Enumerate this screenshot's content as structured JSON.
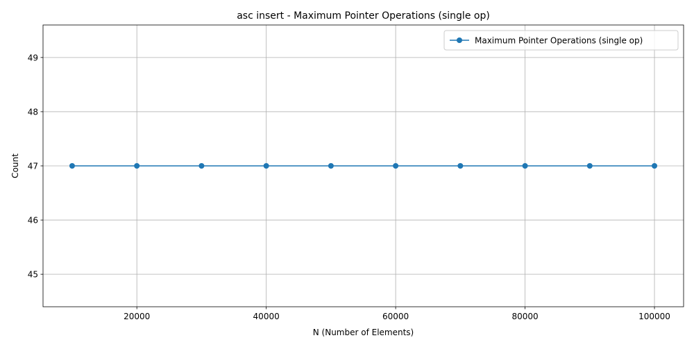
{
  "chart_data": {
    "type": "line",
    "title": "asc insert - Maximum Pointer Operations (single op)",
    "xlabel": "N (Number of Elements)",
    "ylabel": "Count",
    "x": [
      10000,
      20000,
      30000,
      40000,
      50000,
      60000,
      70000,
      80000,
      90000,
      100000
    ],
    "series": [
      {
        "name": "Maximum Pointer Operations (single op)",
        "values": [
          47,
          47,
          47,
          47,
          47,
          47,
          47,
          47,
          47,
          47
        ],
        "color": "#1f77b4",
        "marker": "circle"
      }
    ],
    "xlim": [
      5500,
      104500
    ],
    "ylim": [
      44.4,
      49.6
    ],
    "xticks": [
      20000,
      40000,
      60000,
      80000,
      100000
    ],
    "yticks": [
      45,
      46,
      47,
      48,
      49
    ],
    "grid": true,
    "legend": "upper right",
    "grid_color": "#b0b0b0",
    "axis_color": "#000000"
  }
}
